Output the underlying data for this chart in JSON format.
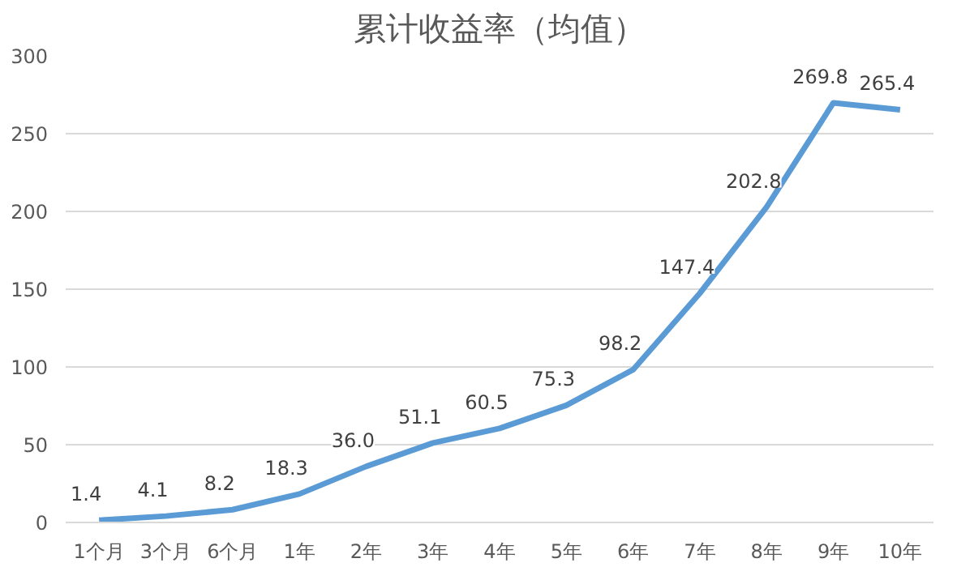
{
  "chart_data": {
    "type": "line",
    "title": "累计收益率（均值）",
    "categories": [
      "1个月",
      "3个月",
      "6个月",
      "1年",
      "2年",
      "3年",
      "4年",
      "5年",
      "6年",
      "7年",
      "8年",
      "9年",
      "10年"
    ],
    "series": [
      {
        "color": "#5b9bd5",
        "values": [
          1.4,
          4.1,
          8.2,
          18.3,
          36.0,
          51.1,
          60.5,
          75.3,
          98.2,
          147.4,
          202.8,
          269.8,
          265.4
        ],
        "value_labels": [
          "1.4",
          "4.1",
          "8.2",
          "18.3",
          "36.0",
          "51.1",
          "60.5",
          "75.3",
          "98.2",
          "147.4",
          "202.8",
          "269.8",
          "265.4"
        ]
      }
    ],
    "ylim": [
      0,
      300
    ],
    "yticks": [
      0,
      50,
      100,
      150,
      200,
      250,
      300
    ],
    "grid": "y",
    "marker": "none",
    "line_style": "solid"
  }
}
